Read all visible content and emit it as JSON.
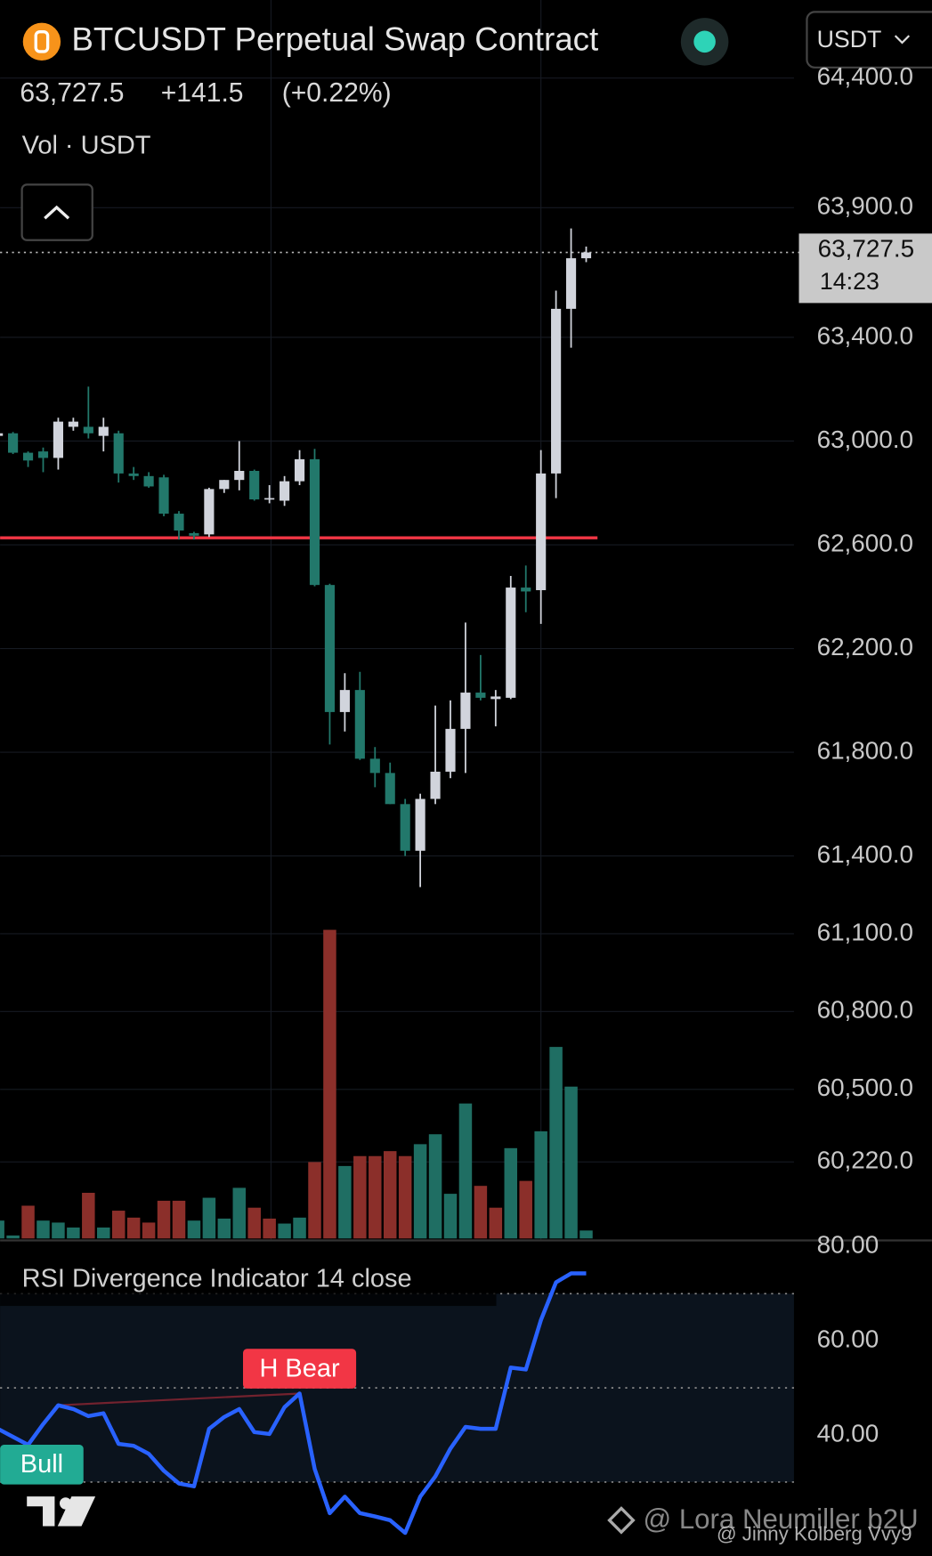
{
  "header": {
    "title": "BTCUSDT Perpetual Swap Contract",
    "price": "63,727.5",
    "change": "+141.5",
    "change_pct": "(+0.22%)",
    "volume_label": "Vol · USDT",
    "currency": "USDT"
  },
  "watermarks": [
    "@ Lora Neumiller b2U",
    "@ Jinny Kolberg Vvy9"
  ],
  "chart_data": [
    {
      "type": "candlestick",
      "up_color": "#d1d4dc",
      "down_color": "#22786b",
      "open": [
        63020,
        63030,
        62955,
        62960,
        62935,
        63055,
        63055,
        63020,
        63030,
        62875,
        62865,
        62860,
        62720,
        62645,
        62640,
        62815,
        62850,
        62885,
        62775,
        62770,
        62845,
        62930,
        62445,
        61955,
        62040,
        61775,
        61720,
        61600,
        61420,
        61620,
        61725,
        61890,
        62030,
        62005,
        62010,
        62435,
        62425,
        62875,
        63510,
        63705
      ],
      "high": [
        63040,
        63035,
        62960,
        62975,
        63090,
        63090,
        63210,
        63090,
        63040,
        62900,
        62880,
        62870,
        62730,
        62650,
        62820,
        62850,
        63000,
        62890,
        62830,
        62865,
        62965,
        62970,
        62450,
        62105,
        62110,
        61820,
        61760,
        61620,
        61640,
        61980,
        62000,
        62300,
        62175,
        62040,
        62480,
        62520,
        62965,
        63580,
        63820,
        63750
      ],
      "low": [
        62990,
        62950,
        62900,
        62880,
        62890,
        63040,
        63010,
        62960,
        62840,
        62850,
        62820,
        62710,
        62620,
        62620,
        62630,
        62800,
        62810,
        62770,
        62760,
        62750,
        62830,
        62440,
        61830,
        61880,
        61770,
        61665,
        61600,
        61400,
        61280,
        61600,
        61700,
        61720,
        62000,
        61900,
        62005,
        62340,
        62295,
        62780,
        63360,
        63690
      ],
      "close": [
        63030,
        62955,
        62925,
        62935,
        63075,
        63075,
        63030,
        63055,
        62875,
        62865,
        62825,
        62720,
        62655,
        62635,
        62815,
        62850,
        62885,
        62775,
        62780,
        62845,
        62930,
        62445,
        61955,
        62040,
        61775,
        61720,
        61600,
        61420,
        61620,
        61725,
        61890,
        62030,
        62010,
        62015,
        62435,
        62420,
        62875,
        63510,
        63705,
        63727.5
      ],
      "ylim": [
        59925,
        64433
      ],
      "yticks": [
        {
          "value": 64400,
          "label": "64,400.0"
        },
        {
          "value": 63900,
          "label": "63,900.0"
        },
        {
          "value": 63400,
          "label": "63,400.0"
        },
        {
          "value": 63000,
          "label": "63,000.0"
        },
        {
          "value": 62600,
          "label": "62,600.0"
        },
        {
          "value": 62200,
          "label": "62,200.0"
        },
        {
          "value": 61800,
          "label": "61,800.0"
        },
        {
          "value": 61400,
          "label": "61,400.0"
        },
        {
          "value": 61100,
          "label": "61,100.0"
        },
        {
          "value": 60800,
          "label": "60,800.0"
        },
        {
          "value": 60500,
          "label": "60,500.0"
        },
        {
          "value": 60220,
          "label": "60,220.0"
        }
      ],
      "grid": true,
      "hline": {
        "value": 62627,
        "color": "#f23645"
      },
      "last_price": {
        "value": 63727.5,
        "label": "63,727.5"
      },
      "countdown": "14:23"
    },
    {
      "type": "volume",
      "values": [
        18,
        3,
        33,
        18,
        16,
        11,
        46,
        11,
        28,
        21,
        16,
        38,
        38,
        18,
        41,
        20,
        51,
        31,
        20,
        15,
        21,
        77,
        311,
        73,
        83,
        83,
        88,
        83,
        95,
        105,
        45,
        136,
        53,
        31,
        91,
        58,
        108,
        193,
        153,
        8
      ],
      "colors": [
        "#1f6e63",
        "#1f6e63",
        "#8b2f2a",
        "#1f6e63",
        "#1f6e63",
        "#1f6e63",
        "#8b2f2a",
        "#1f6e63",
        "#8b2f2a",
        "#8b2f2a",
        "#8b2f2a",
        "#8b2f2a",
        "#8b2f2a",
        "#1f6e63",
        "#1f6e63",
        "#1f6e63",
        "#1f6e63",
        "#8b2f2a",
        "#8b2f2a",
        "#1f6e63",
        "#1f6e63",
        "#8b2f2a",
        "#8b2f2a",
        "#1f6e63",
        "#8b2f2a",
        "#8b2f2a",
        "#8b2f2a",
        "#8b2f2a",
        "#1f6e63",
        "#1f6e63",
        "#1f6e63",
        "#1f6e63",
        "#8b2f2a",
        "#8b2f2a",
        "#1f6e63",
        "#8b2f2a",
        "#1f6e63",
        "#1f6e63",
        "#1f6e63",
        "#1f6e63"
      ]
    },
    {
      "type": "line",
      "title": "RSI Divergence Indicator 14 close",
      "color": "#2962ff",
      "values": [
        41.3,
        39.6,
        37.9,
        42.3,
        46.3,
        45.5,
        44.0,
        44.6,
        38.1,
        37.7,
        36.0,
        32.4,
        29.7,
        29.1,
        41.3,
        43.8,
        45.5,
        40.6,
        40.2,
        45.9,
        48.8,
        32.8,
        23.4,
        26.9,
        23.4,
        22.7,
        21.9,
        19.2,
        26.9,
        31.2,
        37.1,
        41.7,
        41.3,
        41.3,
        54.3,
        53.9,
        64.4,
        72.4,
        74.3,
        74.3
      ],
      "ylim": [
        14.3,
        81.3
      ],
      "yticks": [
        {
          "value": 80,
          "label": "80.00"
        },
        {
          "value": 60,
          "label": "60.00"
        },
        {
          "value": 40,
          "label": "40.00"
        }
      ],
      "levels": [
        70,
        50,
        30
      ],
      "annotations": [
        {
          "text": "H Bear",
          "index": 20,
          "from": 4,
          "color": "#f23645"
        },
        {
          "text": "Bull",
          "index": 1,
          "color": "#22ab94"
        }
      ]
    }
  ]
}
